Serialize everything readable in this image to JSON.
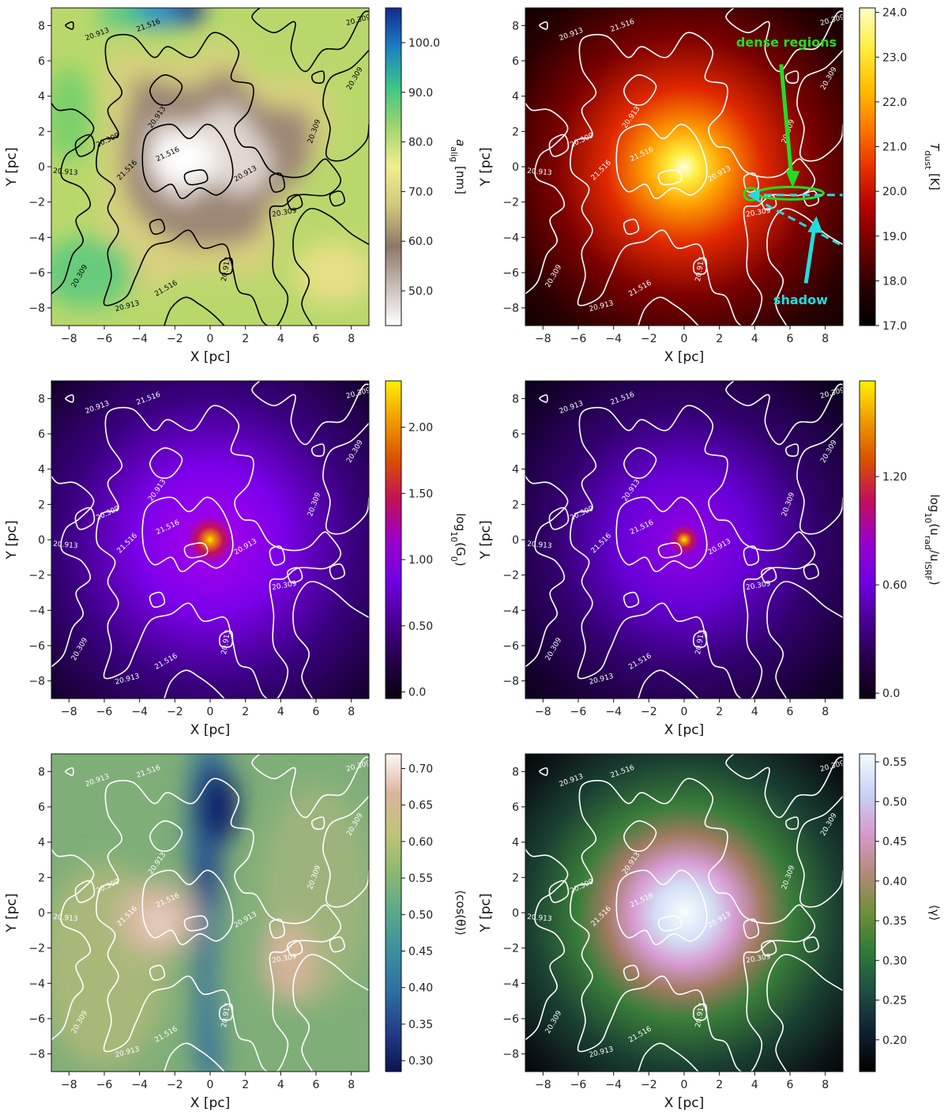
{
  "figure": {
    "description_note": "Six-panel figure of dust/radiation maps with column-density contours"
  },
  "chart_data": [
    {
      "id": "a_alig",
      "type": "heatmap",
      "title": "",
      "xlabel": "X [pc]",
      "ylabel": "Y [pc]",
      "xlim": [
        -9,
        9
      ],
      "ylim": [
        -9,
        9
      ],
      "xticks": [
        "-8",
        "-6",
        "-4",
        "-2",
        "0",
        "2",
        "4",
        "6",
        "8"
      ],
      "yticks": [
        "8",
        "6",
        "4",
        "2",
        "0",
        "-2",
        "-4",
        "-6",
        "-8"
      ],
      "colorbar": {
        "label_main": "a",
        "label_sub": "alig",
        "label_unit": " [nm]",
        "range": [
          43,
          107
        ],
        "ticks": [
          "100.0",
          "90.0",
          "80.0",
          "70.0",
          "60.0",
          "50.0"
        ],
        "tick_values": [
          100,
          90,
          80,
          70,
          60,
          50
        ],
        "colors": [
          "#ffffff",
          "#c8bcb6",
          "#8f7766",
          "#cfc67e",
          "#f2ee8c",
          "#9ed66e",
          "#3ec586",
          "#1d7fc4",
          "#142a8c"
        ]
      },
      "contour_color": "#000000",
      "contour_levels": [
        "20.309",
        "20.913",
        "21.516"
      ]
    },
    {
      "id": "t_dust",
      "type": "heatmap",
      "xlabel": "X [pc]",
      "ylabel": "Y [pc]",
      "xlim": [
        -9,
        9
      ],
      "ylim": [
        -9,
        9
      ],
      "xticks": [
        "-8",
        "-6",
        "-4",
        "-2",
        "0",
        "2",
        "4",
        "6",
        "8"
      ],
      "yticks": [
        "8",
        "6",
        "4",
        "2",
        "0",
        "-2",
        "-4",
        "-6",
        "-8"
      ],
      "colorbar": {
        "label_main": "T",
        "label_sub": "dust",
        "label_unit": " [K]",
        "range": [
          17.0,
          24.1
        ],
        "ticks": [
          "24.0",
          "23.0",
          "22.0",
          "21.0",
          "20.0",
          "19.0",
          "18.0",
          "17.0"
        ],
        "tick_values": [
          24,
          23,
          22,
          21,
          20,
          19,
          18,
          17
        ],
        "colors": [
          "#000000",
          "#2a0000",
          "#6e0000",
          "#b40000",
          "#e83200",
          "#ff7a00",
          "#ffbf00",
          "#ffee40",
          "#ffffc8"
        ]
      },
      "contour_color": "#ffffff",
      "contour_levels": [
        "20.309",
        "20.913",
        "21.516"
      ],
      "annotations": [
        {
          "text": "dense regions",
          "color": "#22dd22"
        },
        {
          "text": "shadow",
          "color": "#22dddd"
        }
      ]
    },
    {
      "id": "g0",
      "type": "heatmap",
      "xlabel": "X [pc]",
      "ylabel": "Y [pc]",
      "xlim": [
        -9,
        9
      ],
      "ylim": [
        -9,
        9
      ],
      "xticks": [
        "-8",
        "-6",
        "-4",
        "-2",
        "0",
        "2",
        "4",
        "6",
        "8"
      ],
      "yticks": [
        "8",
        "6",
        "4",
        "2",
        "0",
        "-2",
        "-4",
        "-6",
        "-8"
      ],
      "colorbar": {
        "label_main": "log",
        "label_sub": "10",
        "label_unit": "(G",
        "label_sub2": "0",
        "label_end": ")",
        "range": [
          -0.05,
          2.35
        ],
        "ticks": [
          "2.00",
          "1.50",
          "1.00",
          "0.50",
          "0.0"
        ],
        "tick_values": [
          2.0,
          1.5,
          1.0,
          0.5,
          0.0
        ],
        "colors": [
          "#0a0010",
          "#26004a",
          "#4a0098",
          "#7300e6",
          "#9b00c8",
          "#c2105a",
          "#d85000",
          "#f09a00",
          "#fff000"
        ]
      },
      "contour_color": "#ffffff",
      "contour_levels": [
        "20.309",
        "20.913",
        "21.516"
      ]
    },
    {
      "id": "u_rad",
      "type": "heatmap",
      "xlabel": "X [pc]",
      "ylabel": "Y [pc]",
      "xlim": [
        -9,
        9
      ],
      "ylim": [
        -9,
        9
      ],
      "xticks": [
        "-8",
        "-6",
        "-4",
        "-2",
        "0",
        "2",
        "4",
        "6",
        "8"
      ],
      "yticks": [
        "8",
        "6",
        "4",
        "2",
        "0",
        "-2",
        "-4",
        "-6",
        "-8"
      ],
      "colorbar": {
        "label_main": "log",
        "label_sub": "10",
        "label_unit": "(u",
        "label_sub2": "rad",
        "label_end": "/u",
        "label_sub3": "ISRF",
        "label_final": ")",
        "range": [
          -0.03,
          1.73
        ],
        "ticks": [
          "1.20",
          "0.60",
          "0.0"
        ],
        "tick_values": [
          1.2,
          0.6,
          0.0
        ],
        "colors": [
          "#0a0010",
          "#26004a",
          "#4a0098",
          "#7300e6",
          "#9b00c8",
          "#c2105a",
          "#d85000",
          "#f09a00",
          "#fff000"
        ]
      },
      "contour_color": "#ffffff",
      "contour_levels": [
        "20.309",
        "20.913",
        "21.516"
      ]
    },
    {
      "id": "cos_theta",
      "type": "heatmap",
      "xlabel": "X [pc]",
      "ylabel": "Y [pc]",
      "xlim": [
        -9,
        9
      ],
      "ylim": [
        -9,
        9
      ],
      "xticks": [
        "-8",
        "-6",
        "-4",
        "-2",
        "0",
        "2",
        "4",
        "6",
        "8"
      ],
      "yticks": [
        "8",
        "6",
        "4",
        "2",
        "0",
        "-2",
        "-4",
        "-6",
        "-8"
      ],
      "colorbar": {
        "label_main": "⟨cos(θ)⟩",
        "range": [
          0.285,
          0.72
        ],
        "ticks": [
          "0.70",
          "0.65",
          "0.60",
          "0.55",
          "0.50",
          "0.45",
          "0.40",
          "0.35",
          "0.30"
        ],
        "tick_values": [
          0.7,
          0.65,
          0.6,
          0.55,
          0.5,
          0.45,
          0.4,
          0.35,
          0.3
        ],
        "colors": [
          "#0a1550",
          "#243c8a",
          "#2e6ea0",
          "#3c8ea0",
          "#5aa88a",
          "#8cb870",
          "#c0c27a",
          "#dcb49a",
          "#fff8f6"
        ]
      },
      "contour_color": "#ffffff",
      "contour_levels": [
        "20.309",
        "20.913",
        "21.516"
      ]
    },
    {
      "id": "gamma",
      "type": "heatmap",
      "xlabel": "X [pc]",
      "ylabel": "Y [pc]",
      "xlim": [
        -9,
        9
      ],
      "ylim": [
        -9,
        9
      ],
      "xticks": [
        "-8",
        "-6",
        "-4",
        "-2",
        "0",
        "2",
        "4",
        "6",
        "8"
      ],
      "yticks": [
        "8",
        "6",
        "4",
        "2",
        "0",
        "-2",
        "-4",
        "-6",
        "-8"
      ],
      "colorbar": {
        "label_main": "⟨γ⟩",
        "range": [
          0.16,
          0.56
        ],
        "ticks": [
          "0.55",
          "0.50",
          "0.45",
          "0.40",
          "0.35",
          "0.30",
          "0.25",
          "0.20"
        ],
        "tick_values": [
          0.55,
          0.5,
          0.45,
          0.4,
          0.35,
          0.3,
          0.25,
          0.2
        ],
        "colors": [
          "#000000",
          "#102030",
          "#1e4c44",
          "#2e7a38",
          "#6f8e38",
          "#b48a7a",
          "#d69acc",
          "#c8d2f6",
          "#f4fcfc"
        ]
      },
      "contour_color": "#ffffff",
      "contour_levels": [
        "20.309",
        "20.913",
        "21.516"
      ]
    }
  ]
}
